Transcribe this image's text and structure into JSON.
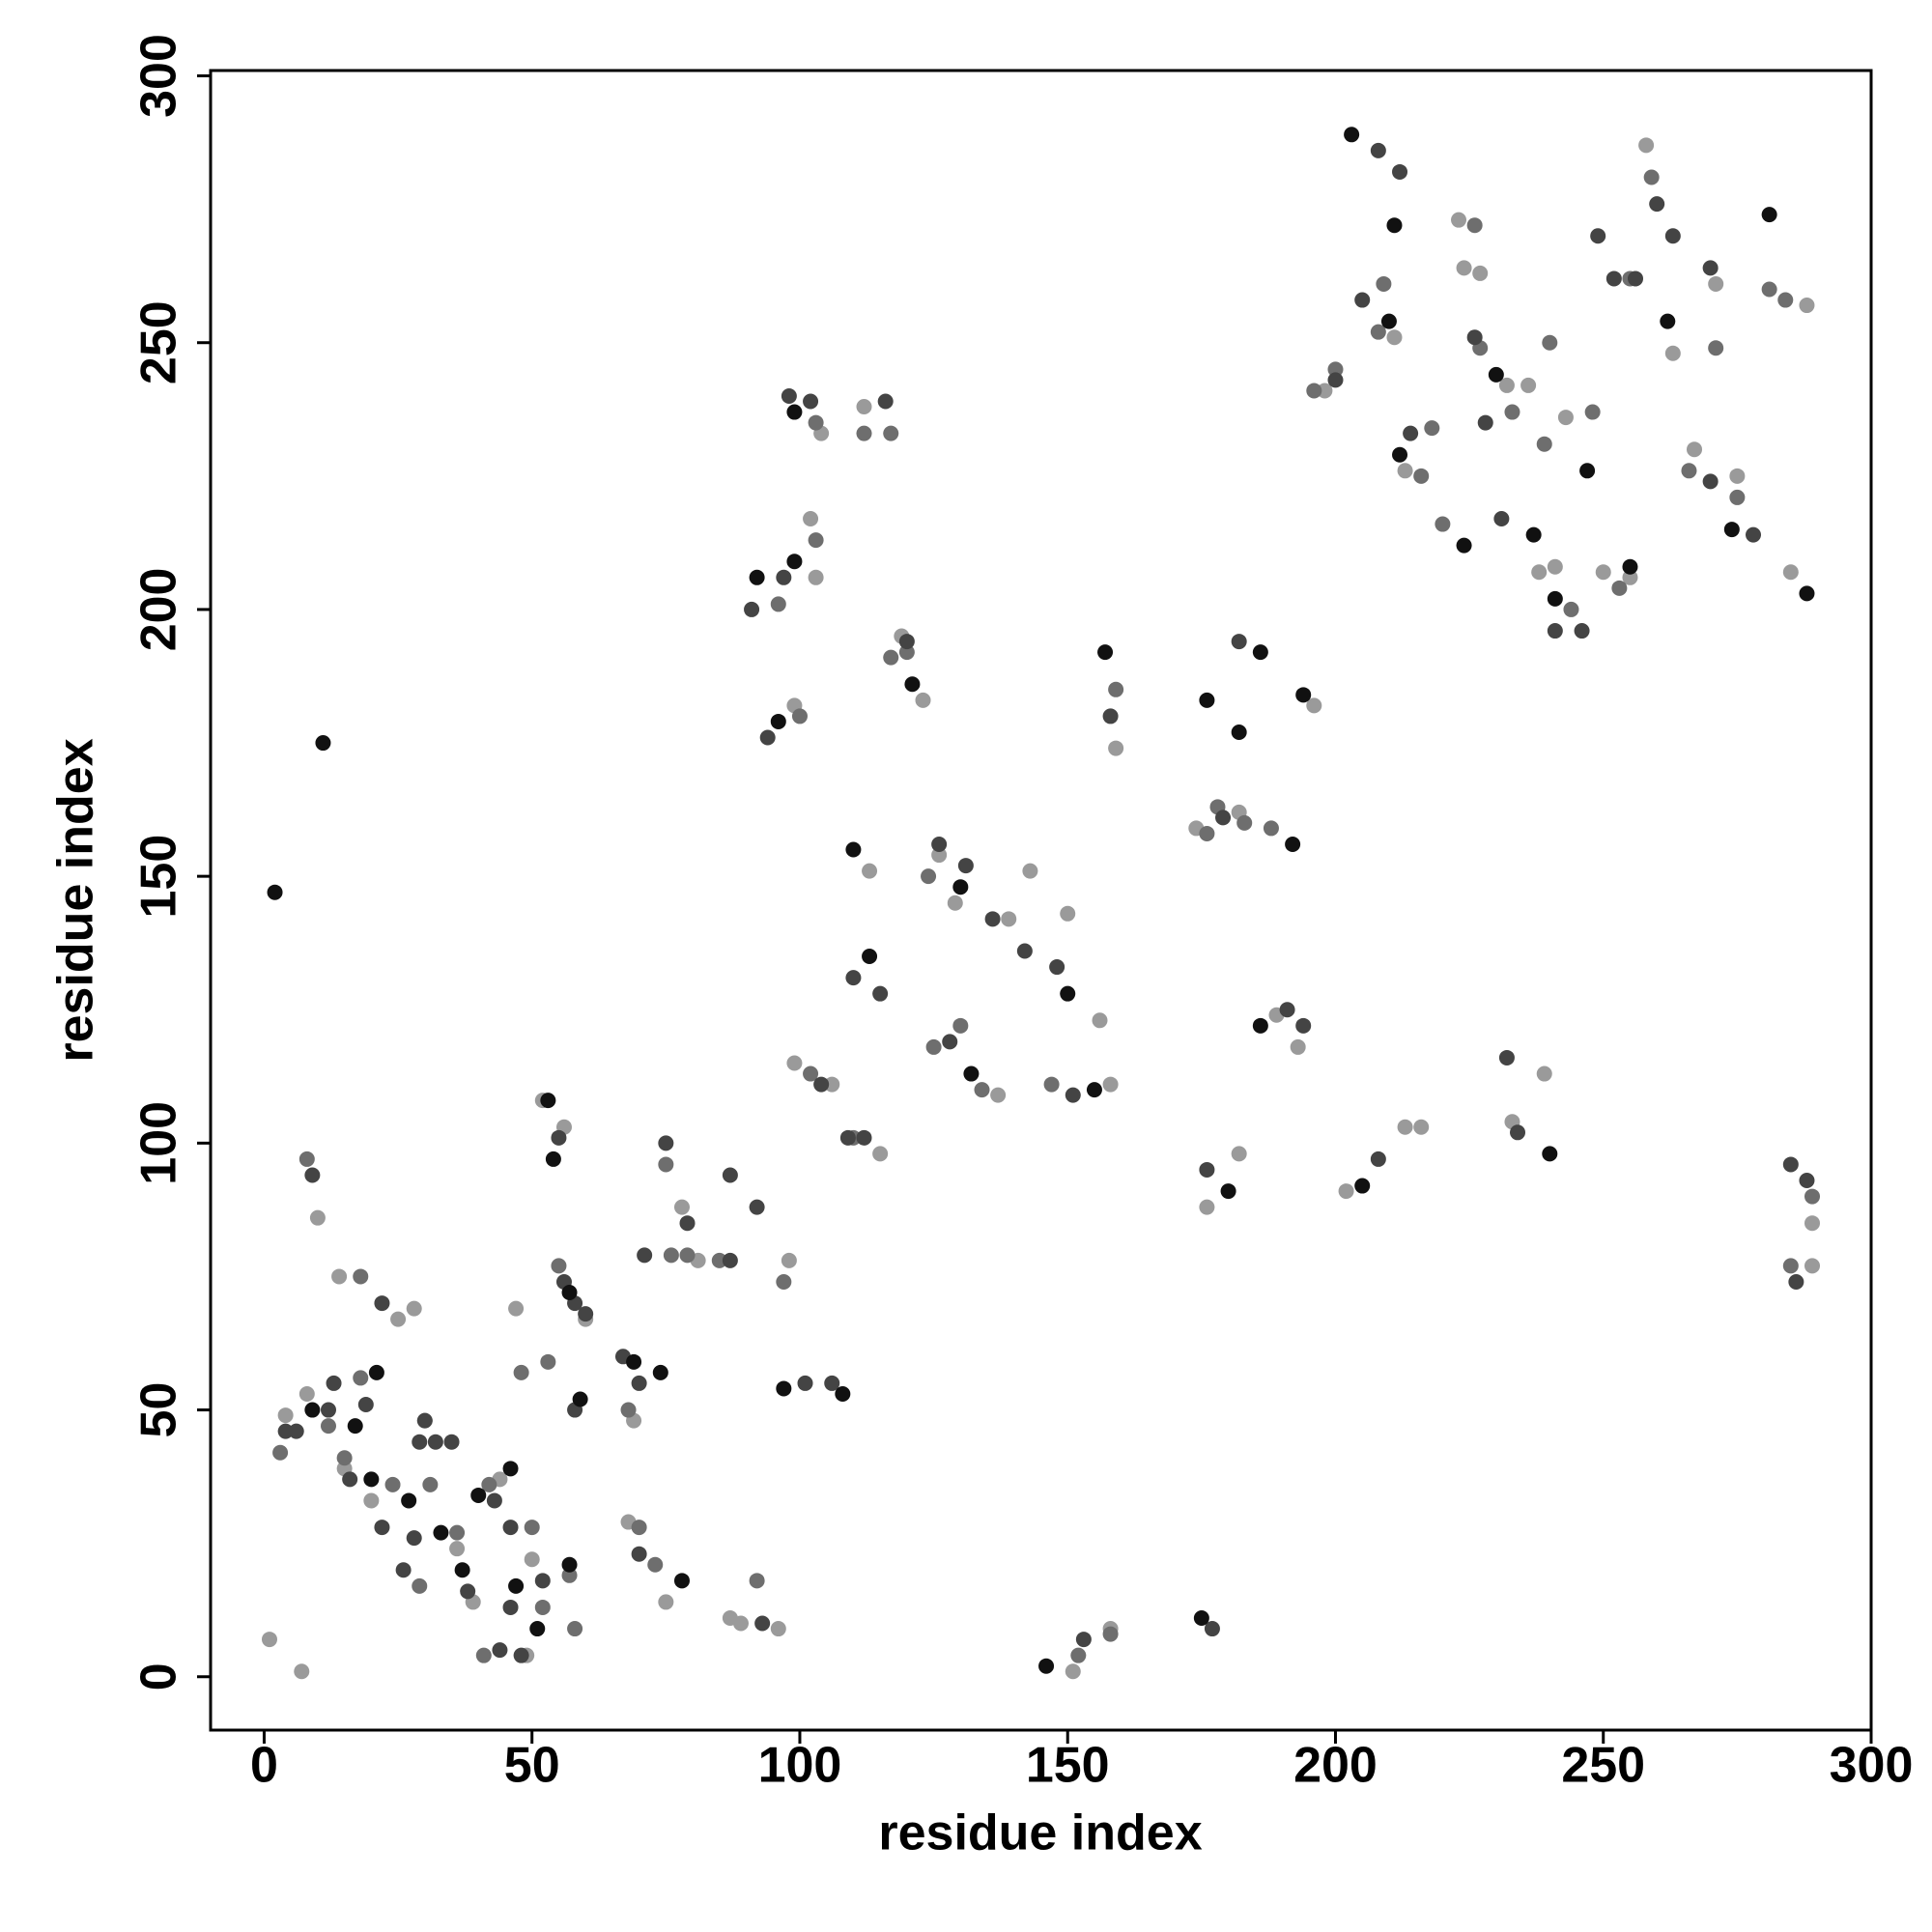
{
  "chart_data": {
    "type": "scatter",
    "xlabel": "residue index",
    "ylabel": "residue index",
    "xlim": [
      -10,
      300
    ],
    "ylim": [
      -10,
      301
    ],
    "xticks": [
      0,
      50,
      100,
      150,
      200,
      250,
      300
    ],
    "yticks": [
      0,
      50,
      100,
      150,
      200,
      250,
      300
    ],
    "series": [
      {
        "color": "#9a9a9a",
        "x": [
          1,
          7,
          4,
          8,
          10,
          14,
          15,
          20,
          25,
          28,
          30,
          36,
          39,
          44,
          49,
          50,
          47,
          52,
          56,
          60,
          68,
          69,
          75,
          78,
          81,
          87,
          89,
          96,
          98,
          99,
          102,
          103,
          99,
          106,
          104,
          112,
          115,
          113,
          119,
          123,
          126,
          129,
          137,
          139,
          143,
          150,
          156,
          158,
          151,
          158,
          159,
          176,
          182,
          182,
          189,
          196,
          198,
          202,
          213,
          216,
          211,
          213,
          224,
          227,
          232,
          236,
          238,
          241,
          243,
          250,
          255,
          263,
          267,
          271,
          275,
          285,
          288,
          289,
          289,
          174,
          193,
          223,
          258,
          233,
          239
        ],
        "values": [
          7,
          1,
          49,
          53,
          86,
          75,
          39,
          33,
          67,
          69,
          48,
          24,
          14,
          37,
          4,
          22,
          69,
          108,
          103,
          67,
          29,
          48,
          14,
          88,
          78,
          11,
          10,
          9,
          78,
          115,
          217,
          206,
          182,
          111,
          233,
          238,
          98,
          151,
          195,
          183,
          154,
          145,
          109,
          142,
          151,
          143,
          123,
          111,
          1,
          9,
          174,
          88,
          98,
          162,
          124,
          182,
          241,
          91,
          103,
          103,
          251,
          226,
          264,
          263,
          242,
          242,
          207,
          208,
          236,
          207,
          206,
          248,
          230,
          261,
          225,
          207,
          257,
          77,
          85,
          159,
          118,
          273,
          287,
          104,
          113
        ]
      },
      {
        "color": "#6e6e6e",
        "x": [
          3,
          12,
          15,
          18,
          24,
          29,
          31,
          36,
          41,
          42,
          50,
          52,
          53,
          57,
          48,
          55,
          68,
          70,
          73,
          79,
          76,
          85,
          92,
          102,
          110,
          117,
          112,
          96,
          103,
          103,
          117,
          120,
          124,
          125,
          134,
          147,
          152,
          158,
          159,
          183,
          178,
          196,
          200,
          209,
          216,
          218,
          220,
          227,
          233,
          239,
          244,
          248,
          255,
          259,
          266,
          271,
          275,
          281,
          284,
          289,
          285,
          8,
          18,
          58,
          97,
          100,
          130,
          176,
          188,
          208,
          226,
          253,
          240,
          75
        ],
        "values": [
          42,
          47,
          41,
          56,
          36,
          17,
          36,
          27,
          4,
          36,
          28,
          13,
          59,
          19,
          57,
          77,
          50,
          28,
          21,
          79,
          79,
          78,
          18,
          113,
          101,
          233,
          233,
          201,
          235,
          213,
          191,
          192,
          150,
          118,
          110,
          111,
          4,
          8,
          185,
          160,
          163,
          241,
          245,
          261,
          225,
          234,
          216,
          249,
          237,
          231,
          200,
          237,
          262,
          281,
          226,
          249,
          221,
          260,
          258,
          90,
          77,
          97,
          75,
          9,
          74,
          180,
          122,
          158,
          159,
          252,
          272,
          204,
          250,
          96
        ]
      },
      {
        "color": "#444444",
        "x": [
          4,
          6,
          12,
          13,
          16,
          19,
          22,
          26,
          29,
          30,
          32,
          38,
          43,
          46,
          46,
          48,
          52,
          55,
          56,
          58,
          60,
          67,
          70,
          70,
          71,
          79,
          87,
          92,
          93,
          101,
          106,
          94,
          91,
          97,
          102,
          109,
          112,
          116,
          110,
          115,
          126,
          131,
          128,
          136,
          142,
          148,
          151,
          153,
          158,
          179,
          182,
          191,
          194,
          200,
          205,
          208,
          212,
          214,
          226,
          228,
          231,
          232,
          234,
          241,
          246,
          249,
          252,
          256,
          260,
          263,
          270,
          270,
          278,
          285,
          286,
          288,
          35,
          9,
          75,
          104,
          208,
          176,
          177,
          28,
          44,
          87,
          120,
          98,
          58,
          22
        ],
        "values": [
          46,
          46,
          50,
          55,
          37,
          51,
          28,
          20,
          44,
          48,
          44,
          16,
          33,
          13,
          28,
          4,
          18,
          101,
          74,
          70,
          68,
          60,
          55,
          23,
          79,
          85,
          78,
          88,
          10,
          55,
          55,
          176,
          200,
          206,
          239,
          101,
          101,
          239,
          131,
          128,
          156,
          152,
          119,
          142,
          136,
          133,
          109,
          7,
          180,
          161,
          194,
          125,
          122,
          243,
          258,
          286,
          282,
          233,
          251,
          235,
          217,
          116,
          102,
          196,
          196,
          270,
          262,
          262,
          276,
          270,
          224,
          264,
          214,
          96,
          74,
          93,
          44,
          94,
          100,
          111,
          97,
          95,
          9,
          26,
          5,
          94,
          194,
          240,
          50,
          70
        ]
      },
      {
        "color": "#111111",
        "x": [
          2,
          11,
          9,
          17,
          21,
          20,
          27,
          33,
          37,
          40,
          46,
          47,
          51,
          57,
          54,
          53,
          57,
          59,
          69,
          74,
          78,
          97,
          108,
          92,
          99,
          96,
          99,
          110,
          113,
          121,
          130,
          132,
          150,
          155,
          146,
          157,
          176,
          182,
          186,
          180,
          192,
          186,
          194,
          203,
          211,
          210,
          212,
          224,
          230,
          237,
          241,
          247,
          255,
          262,
          274,
          288,
          205,
          240,
          175,
          281
        ],
        "values": [
          147,
          175,
          50,
          47,
          57,
          37,
          33,
          27,
          20,
          34,
          39,
          17,
          9,
          21,
          97,
          108,
          72,
          52,
          59,
          57,
          18,
          54,
          53,
          206,
          209,
          179,
          237,
          155,
          135,
          186,
          148,
          113,
          128,
          110,
          2,
          192,
          183,
          177,
          192,
          91,
          156,
          122,
          184,
          289,
          272,
          254,
          229,
          212,
          244,
          214,
          202,
          226,
          208,
          254,
          215,
          203,
          92,
          98,
          11,
          274
        ]
      }
    ]
  }
}
